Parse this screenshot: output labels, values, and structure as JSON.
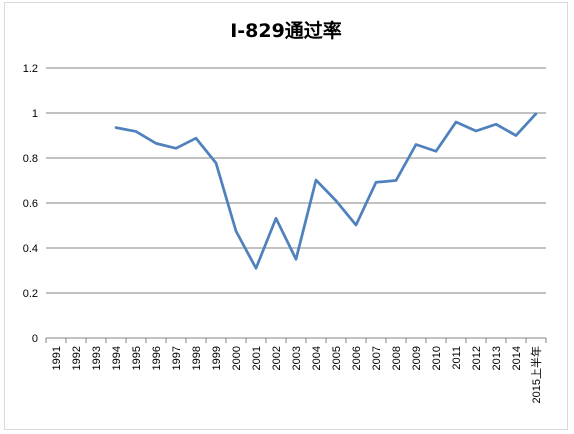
{
  "chart_data": {
    "type": "line",
    "title": "I-829通过率",
    "xlabel": "",
    "ylabel": "",
    "ylim": [
      0,
      1.2
    ],
    "yticks": [
      "0",
      "0.2",
      "0.4",
      "0.6",
      "0.8",
      "1",
      "1.2"
    ],
    "grid": true,
    "legend": "none",
    "line_color": "#4f81bd",
    "categories": [
      "1991",
      "1992",
      "1993",
      "1994",
      "1995",
      "1996",
      "1997",
      "1998",
      "1999",
      "2000",
      "2001",
      "2002",
      "2003",
      "2004",
      "2005",
      "2006",
      "2007",
      "2008",
      "2009",
      "2010",
      "2011",
      "2012",
      "2013",
      "2014",
      "2015上半年"
    ],
    "values": [
      null,
      null,
      null,
      0.935,
      0.918,
      0.865,
      0.843,
      0.888,
      0.778,
      0.475,
      0.31,
      0.532,
      0.35,
      0.702,
      0.61,
      0.502,
      0.692,
      0.7,
      0.86,
      0.83,
      0.96,
      0.92,
      0.95,
      0.9,
      0.997
    ]
  }
}
